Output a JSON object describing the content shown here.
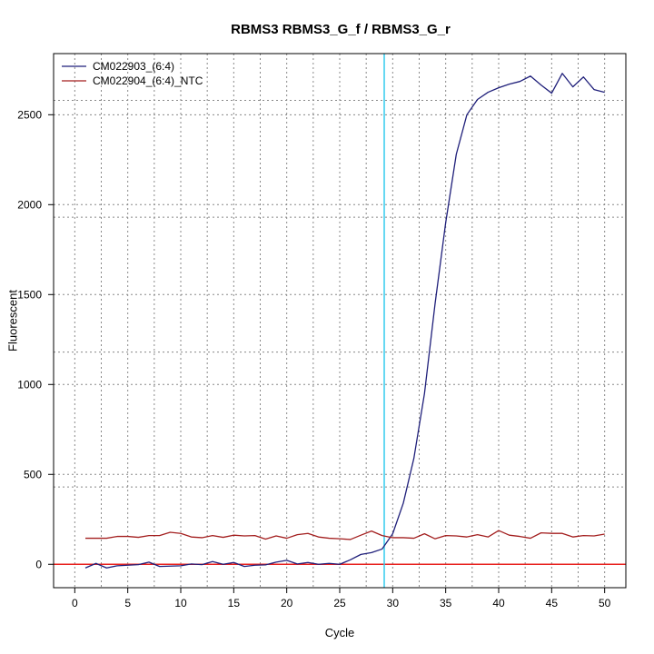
{
  "chart_data": {
    "type": "line",
    "title": "RBMS3  RBMS3_G_f / RBMS3_G_r",
    "xlabel": "Cycle",
    "ylabel": "Fluorescent",
    "xlim": [
      -2,
      52
    ],
    "ylim": [
      -130,
      2840
    ],
    "x_ticks": [
      0,
      5,
      10,
      15,
      20,
      25,
      30,
      35,
      40,
      45,
      50
    ],
    "y_ticks": [
      0,
      500,
      1000,
      1500,
      2000,
      2500
    ],
    "x_grid": [
      2.5,
      7.5,
      12.5,
      17.5,
      22.5,
      27.5,
      32.5,
      37.5,
      42.5,
      47.5
    ],
    "y_grid": [
      430,
      1180,
      1930,
      2580
    ],
    "threshold_y": 0,
    "threshold_color": "#e8201e",
    "cycle_marker_x": 29.2,
    "cycle_marker_color": "#33ccee",
    "grid": true,
    "legend_position": "top-left",
    "x": [
      1,
      2,
      3,
      4,
      5,
      6,
      7,
      8,
      9,
      10,
      11,
      12,
      13,
      14,
      15,
      16,
      17,
      18,
      19,
      20,
      21,
      22,
      23,
      24,
      25,
      26,
      27,
      28,
      29,
      30,
      31,
      32,
      33,
      34,
      35,
      36,
      37,
      38,
      39,
      40,
      41,
      42,
      43,
      44,
      45,
      46,
      47,
      48,
      49,
      50
    ],
    "series": [
      {
        "name": "CM022903_(6:4)",
        "color": "#1f1f7a",
        "values": [
          -20,
          5,
          -20,
          -8,
          -5,
          -2,
          12,
          -12,
          -10,
          -8,
          2,
          -2,
          15,
          0,
          10,
          -12,
          -5,
          -3,
          12,
          22,
          2,
          10,
          0,
          5,
          0,
          25,
          55,
          65,
          85,
          170,
          340,
          590,
          950,
          1450,
          1900,
          2280,
          2500,
          2585,
          2625,
          2650,
          2670,
          2685,
          2715,
          2665,
          2620,
          2730,
          2655,
          2710,
          2640,
          2625
        ]
      },
      {
        "name": "CM022904_(6:4)_NTC",
        "color": "#a31f1f",
        "values": [
          145,
          145,
          145,
          155,
          155,
          150,
          160,
          160,
          178,
          172,
          152,
          148,
          160,
          150,
          162,
          158,
          160,
          140,
          158,
          145,
          165,
          172,
          152,
          145,
          142,
          138,
          162,
          185,
          160,
          148,
          148,
          145,
          170,
          142,
          160,
          158,
          152,
          165,
          152,
          188,
          162,
          155,
          145,
          175,
          172,
          172,
          152,
          160,
          158,
          168
        ]
      }
    ]
  }
}
